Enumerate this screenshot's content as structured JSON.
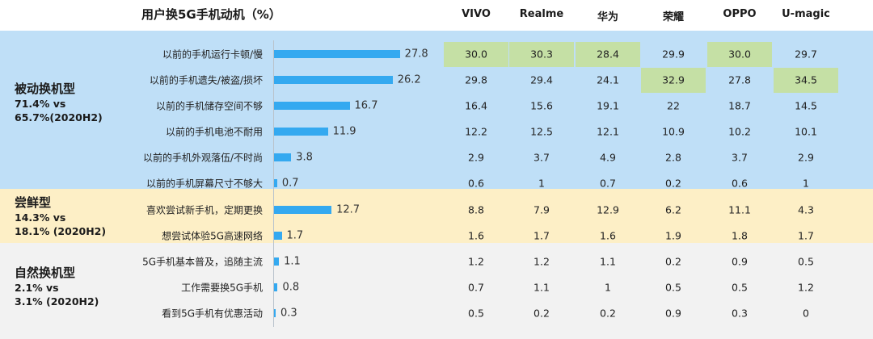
{
  "title": "用户换5G手机动机（%）",
  "brands": [
    "VIVO",
    "Realme",
    "华为",
    "荣耀",
    "OPPO",
    "U-magic"
  ],
  "groups": [
    {
      "name": "被动换机型",
      "stat_line1": "71.4% vs",
      "stat_line2": "65.7%(2020H2)"
    },
    {
      "name": "尝鲜型",
      "stat_line1": "14.3% vs",
      "stat_line2": "18.1% (2020H2)"
    },
    {
      "name": "自然换机型",
      "stat_line1": "2.1% vs",
      "stat_line2": "3.1% (2020H2)"
    }
  ],
  "colors": {
    "bar": "#34a9f0",
    "highlight": "#c5e0a5",
    "band_passive": "#bfdff7",
    "band_fresh": "#fdefc6",
    "band_natural": "#f2f2f2"
  },
  "chart_data": {
    "type": "bar",
    "orientation": "horizontal",
    "title": "用户换5G手机动机（%）",
    "categories": [
      "以前的手机运行卡顿/慢",
      "以前的手机遗失/被盗/损坏",
      "以前的手机储存空间不够",
      "以前的手机电池不耐用",
      "以前的手机外观落伍/不时尚",
      "以前的手机屏幕尺寸不够大",
      "喜欢尝试新手机，定期更换",
      "想尝试体验5G高速网络",
      "5G手机基本普及，追随主流",
      "工作需要换5G手机",
      "看到5G手机有优惠活动"
    ],
    "values": [
      27.8,
      26.2,
      16.7,
      11.9,
      3.8,
      0.7,
      12.7,
      1.7,
      1.1,
      0.8,
      0.3
    ],
    "value_labels": [
      "27.8",
      "26.2",
      "16.7",
      "11.9",
      "3.8",
      "0.7",
      "12.7",
      "1.7",
      "1.1",
      "0.8",
      "0.3"
    ],
    "table": {
      "columns": [
        "VIVO",
        "Realme",
        "华为",
        "荣耀",
        "OPPO",
        "U-magic"
      ],
      "rows": [
        [
          "30.0",
          "30.3",
          "28.4",
          "29.9",
          "30.0",
          "29.7"
        ],
        [
          "29.8",
          "29.4",
          "24.1",
          "32.9",
          "27.8",
          "34.5"
        ],
        [
          "16.4",
          "15.6",
          "19.1",
          "22",
          "18.7",
          "14.5"
        ],
        [
          "12.2",
          "12.5",
          "12.1",
          "10.9",
          "10.2",
          "10.1"
        ],
        [
          "2.9",
          "3.7",
          "4.9",
          "2.8",
          "3.7",
          "2.9"
        ],
        [
          "0.6",
          "1",
          "0.7",
          "0.2",
          "0.6",
          "1"
        ],
        [
          "8.8",
          "7.9",
          "12.9",
          "6.2",
          "11.1",
          "4.3"
        ],
        [
          "1.6",
          "1.7",
          "1.6",
          "1.9",
          "1.8",
          "1.7"
        ],
        [
          "1.2",
          "1.2",
          "1.1",
          "0.2",
          "0.9",
          "0.5"
        ],
        [
          "0.7",
          "1.1",
          "1",
          "0.5",
          "0.5",
          "1.2"
        ],
        [
          "0.5",
          "0.2",
          "0.2",
          "0.9",
          "0.3",
          "0"
        ]
      ],
      "highlighted": [
        [
          0,
          0
        ],
        [
          0,
          1
        ],
        [
          0,
          2
        ],
        [
          0,
          4
        ],
        [
          1,
          3
        ],
        [
          1,
          5
        ]
      ]
    }
  }
}
